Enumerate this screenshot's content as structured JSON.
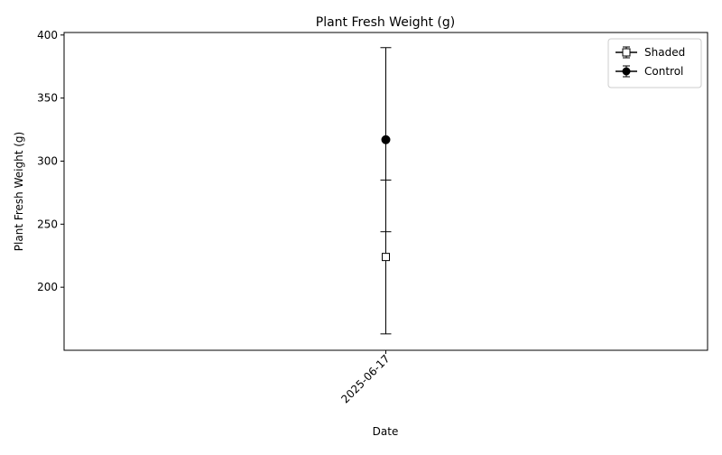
{
  "chart_data": {
    "type": "scatter",
    "title": "Plant Fresh Weight (g)",
    "xlabel": "Date",
    "ylabel": "Plant Fresh Weight (g)",
    "categories": [
      "2025-06-17"
    ],
    "ylim": [
      150,
      402
    ],
    "yticks": [
      200,
      250,
      300,
      350,
      400
    ],
    "grid": false,
    "legend_position": "top-right",
    "series": [
      {
        "name": "Shaded",
        "marker": "square-open",
        "color": "#000000",
        "values": [
          224
        ],
        "error": [
          61
        ]
      },
      {
        "name": "Control",
        "marker": "circle-filled",
        "color": "#000000",
        "values": [
          317
        ],
        "error": [
          73
        ]
      }
    ]
  }
}
